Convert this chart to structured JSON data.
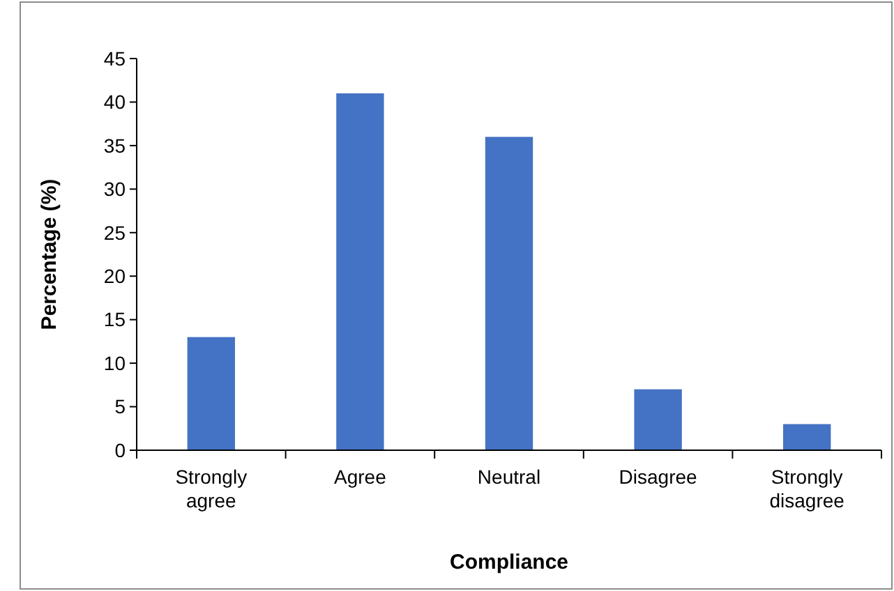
{
  "chart_data": {
    "type": "bar",
    "xlabel": "Compliance",
    "ylabel": "Percentage (%)",
    "categories": [
      "Strongly agree",
      "Agree",
      "Neutral",
      "Disagree",
      "Strongly disagree"
    ],
    "values": [
      13,
      41,
      36,
      7,
      3
    ],
    "color": "#4472c4",
    "ylim": [
      0,
      45
    ],
    "yticks": [
      0,
      5,
      10,
      15,
      20,
      25,
      30,
      35,
      40,
      45
    ],
    "grid": false
  }
}
